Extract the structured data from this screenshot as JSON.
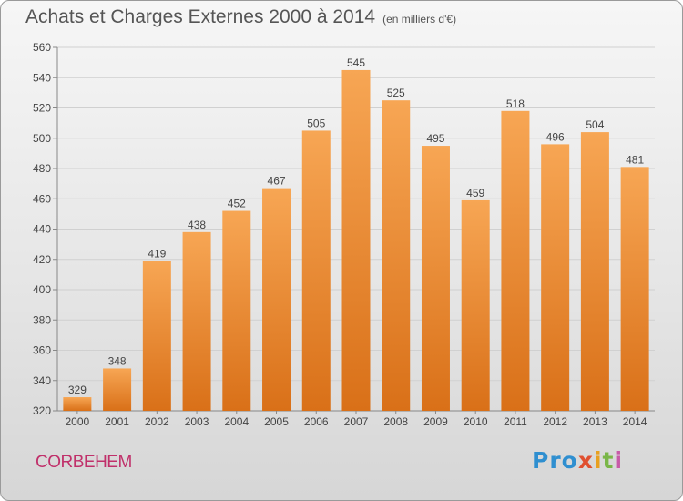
{
  "title": "Achats et Charges Externes 2000 à 2014",
  "subtitle": "(en milliers d'€)",
  "commune": "CORBEHEM",
  "logo": {
    "text": "Proxiti",
    "parts": [
      "Pro",
      "x",
      "i",
      "t",
      "i"
    ]
  },
  "colors": {
    "bar_top": "#f7a654",
    "bar_bottom": "#d97018",
    "grid": "#d0d0d0",
    "commune": "#c0306a"
  },
  "chart_data": {
    "type": "bar",
    "categories": [
      "2000",
      "2001",
      "2002",
      "2003",
      "2004",
      "2005",
      "2006",
      "2007",
      "2008",
      "2009",
      "2010",
      "2011",
      "2012",
      "2013",
      "2014"
    ],
    "values": [
      329,
      348,
      419,
      438,
      452,
      467,
      505,
      545,
      525,
      495,
      459,
      518,
      496,
      504,
      481
    ],
    "ylim": [
      320,
      560
    ],
    "yticks": [
      320,
      340,
      360,
      380,
      400,
      420,
      440,
      460,
      480,
      500,
      520,
      540,
      560
    ],
    "grid": true
  }
}
